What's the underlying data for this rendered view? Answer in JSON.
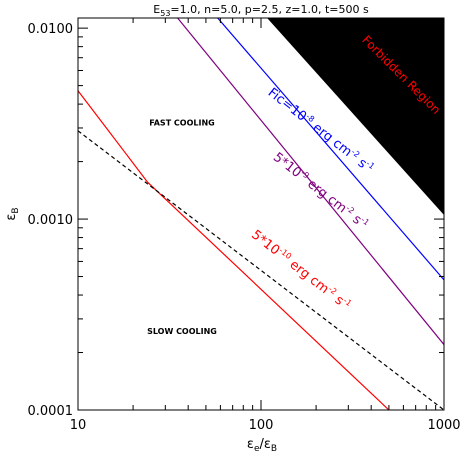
{
  "chart_data": {
    "type": "line",
    "title": "E53=1.0, n=5.0, p=2.5, z=1.0, t=500 s",
    "title_parts": {
      "e_base": "E",
      "e_sub": "53",
      "rest": "=1.0, n=5.0, p=2.5, z=1.0, t=500 s"
    },
    "xlabel": {
      "num": "ε",
      "num_sub": "e",
      "slash": "/",
      "den": "ε",
      "den_sub": "B"
    },
    "ylabel": {
      "sym": "ε",
      "sub": "B"
    },
    "x_scale": "log",
    "y_scale": "log",
    "xlim": [
      10,
      1000
    ],
    "ylim": [
      0.0001,
      0.0113
    ],
    "x_ticks": [
      {
        "value": 10,
        "label": "10"
      },
      {
        "value": 100,
        "label": "100"
      },
      {
        "value": 1000,
        "label": "1000"
      }
    ],
    "y_ticks": [
      {
        "value": 0.0001,
        "label": "0.0001"
      },
      {
        "value": 0.001,
        "label": "0.0010"
      },
      {
        "value": 0.01,
        "label": "0.0100"
      }
    ],
    "regions": [
      {
        "label": "FAST COOLING",
        "x": 37,
        "y": 0.0031
      },
      {
        "label": "SLOW COOLING",
        "x": 37,
        "y": 0.00025
      }
    ],
    "forbidden": {
      "label": "Forbidden Region",
      "color": "#000000",
      "label_color": "#ff0000",
      "points": [
        [
          108,
          0.0113
        ],
        [
          1000,
          0.0113
        ],
        [
          1000,
          0.00105
        ]
      ]
    },
    "series": [
      {
        "id": "flux-1e-8",
        "color": "#0000ff",
        "dashed": false,
        "points": [
          [
            58,
            0.0113
          ],
          [
            1000,
            0.00048
          ]
        ]
      },
      {
        "id": "flux-5e-9",
        "color": "#800080",
        "dashed": false,
        "points": [
          [
            35,
            0.0113
          ],
          [
            1000,
            0.00022
          ]
        ]
      },
      {
        "id": "flux-5e-10",
        "color": "#ff0000",
        "dashed": false,
        "points": [
          [
            10,
            0.0047
          ],
          [
            24,
            0.00156
          ],
          [
            500,
            0.0001
          ]
        ]
      },
      {
        "id": "cooling-boundary",
        "color": "#000000",
        "dashed": true,
        "points": [
          [
            10,
            0.0029
          ],
          [
            1000,
            0.0001
          ]
        ]
      }
    ],
    "annotations": [
      {
        "id": "flux-1e-8-label",
        "color": "#0000ff",
        "x": 205,
        "y": 0.0028,
        "angle": 38,
        "parts": [
          {
            "t": "Fic=10"
          },
          {
            "t": "-8",
            "sup": true
          },
          {
            "t": " erg cm"
          },
          {
            "t": "-2",
            "sup": true
          },
          {
            "t": " s"
          },
          {
            "t": "-1",
            "sup": true
          }
        ]
      },
      {
        "id": "flux-5e-9-label",
        "color": "#800080",
        "x": 205,
        "y": 0.00135,
        "angle": 38,
        "parts": [
          {
            "t": "5*10"
          },
          {
            "t": "-9",
            "sup": true
          },
          {
            "t": " erg cm"
          },
          {
            "t": "-2",
            "sup": true
          },
          {
            "t": " s"
          },
          {
            "t": "-1",
            "sup": true
          }
        ]
      },
      {
        "id": "flux-5e-10-label",
        "color": "#ff0000",
        "x": 160,
        "y": 0.00052,
        "angle": 38,
        "parts": [
          {
            "t": "5*10"
          },
          {
            "t": "-10",
            "sup": true
          },
          {
            "t": " erg cm"
          },
          {
            "t": "-2",
            "sup": true
          },
          {
            "t": " s"
          },
          {
            "t": "-1",
            "sup": true
          }
        ]
      }
    ]
  }
}
